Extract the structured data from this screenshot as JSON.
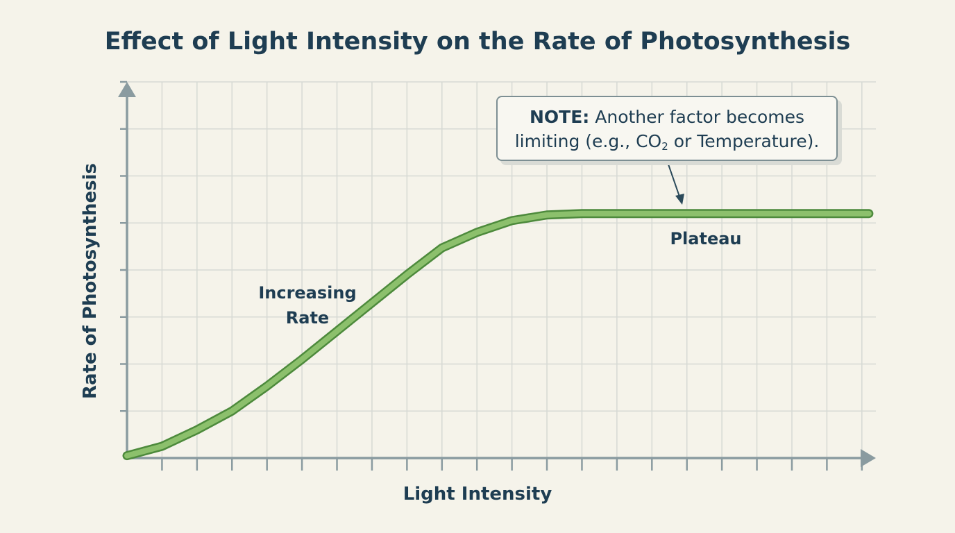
{
  "chart_data": {
    "type": "line",
    "title": "Effect of Light Intensity on the Rate of Photosynthesis",
    "x_label": "Light Intensity",
    "y_label": "Rate of Photosynthesis",
    "annotations": [
      "Increasing Rate",
      "Plateau"
    ],
    "note": {
      "heading": "NOTE:",
      "text_before": "Another factor becomes limiting (e.g., CO",
      "subscript": "2",
      "text_after": " or Temperature)."
    },
    "x": [
      0,
      1,
      2,
      3,
      4,
      5,
      6,
      7,
      8,
      9,
      10,
      11,
      12,
      13,
      14,
      15,
      16,
      17,
      18,
      19,
      20,
      21.2
    ],
    "series": [
      {
        "name": "Rate",
        "color": "#8cc06c",
        "values": [
          0.05,
          0.25,
          0.6,
          1.0,
          1.53,
          2.1,
          2.7,
          3.3,
          3.9,
          4.47,
          4.8,
          5.05,
          5.17,
          5.2,
          5.2,
          5.2,
          5.2,
          5.2,
          5.2,
          5.2,
          5.2,
          5.2
        ]
      }
    ],
    "xlim": [
      0,
      21.4
    ],
    "ylim": [
      0,
      8
    ],
    "xticks": [
      1,
      2,
      3,
      4,
      5,
      6,
      7,
      8,
      9,
      10,
      11,
      12,
      13,
      14,
      15,
      16,
      17,
      18,
      19,
      20,
      21
    ],
    "yticks": [
      1,
      2,
      3,
      4,
      5,
      6,
      7,
      8
    ],
    "grid": true
  }
}
